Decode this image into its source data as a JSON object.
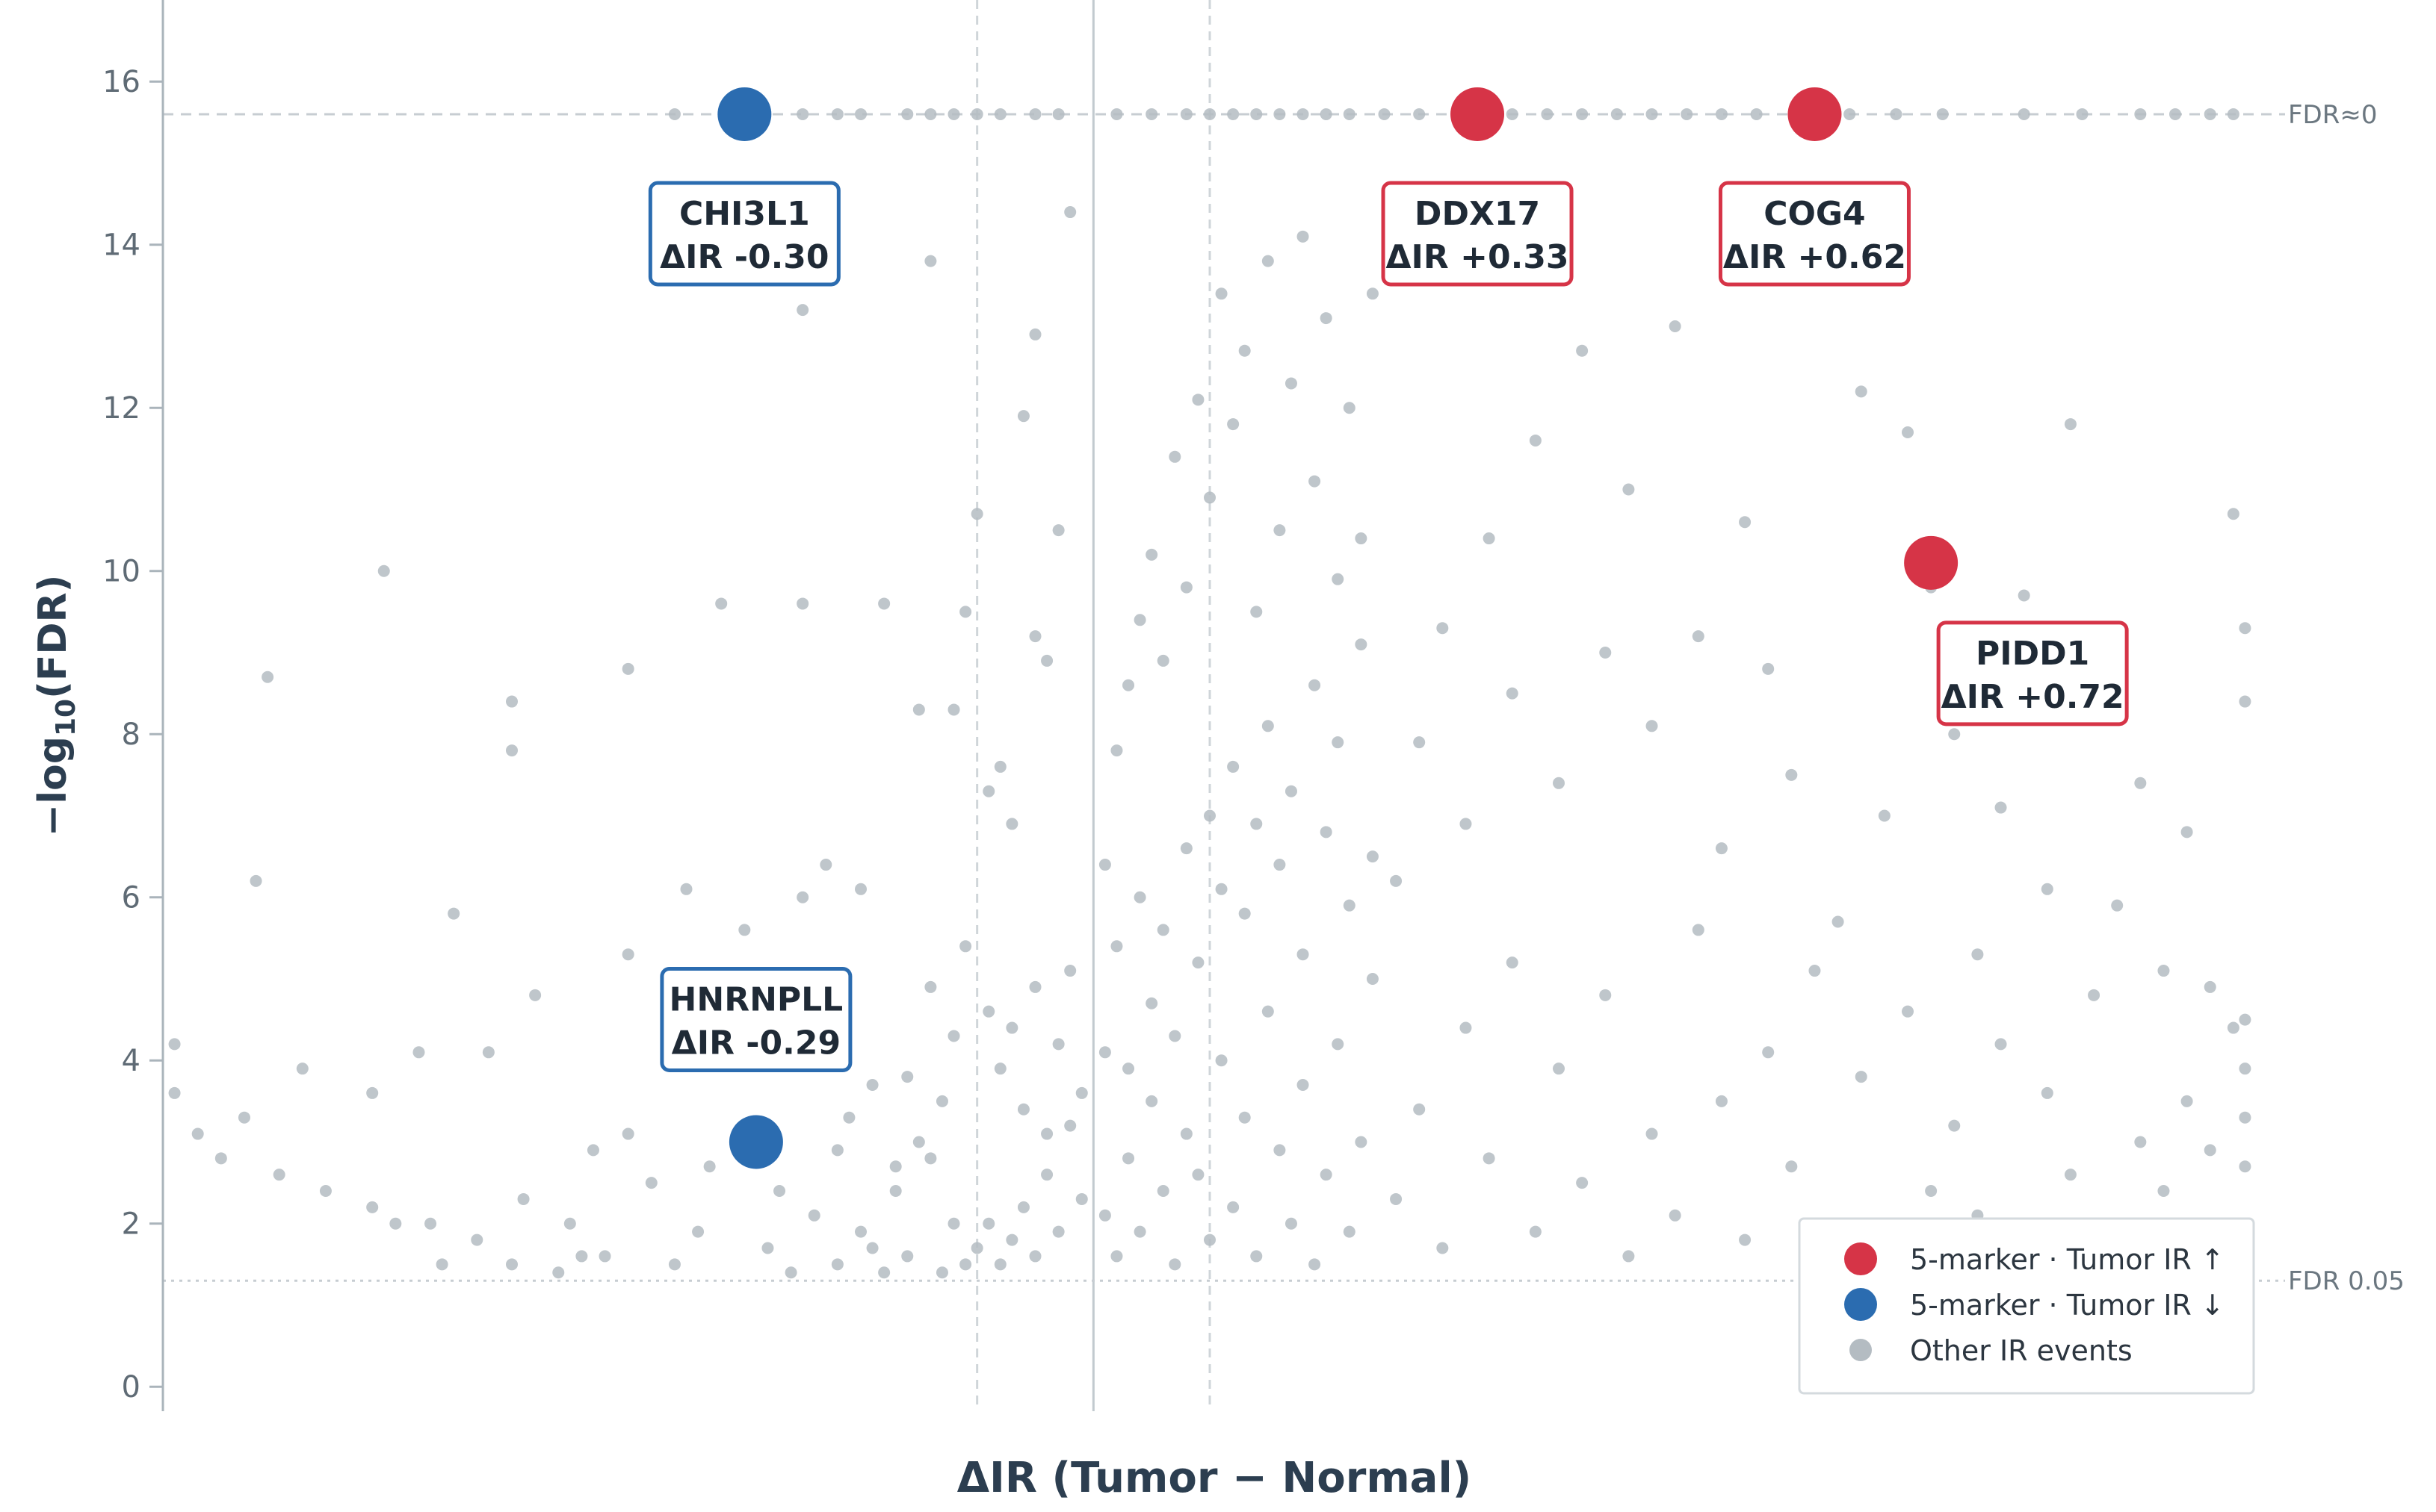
{
  "chart_data": {
    "type": "scatter",
    "title": "",
    "xlabel": "ΔIR  (Tumor − Normal)",
    "ylabel": "−log₁₀(FDR)",
    "ylabel_parts": {
      "pre": "−log",
      "sub": "10",
      "post": "(FDR)"
    },
    "xlim": [
      -0.8,
      1.0
    ],
    "ylim": [
      -0.3,
      17.0
    ],
    "yticks": [
      0,
      2,
      4,
      6,
      8,
      10,
      12,
      14,
      16
    ],
    "x_tick_labels_shown": false,
    "grid": false,
    "reference_lines": {
      "vertical_solid_x": [
        0.0
      ],
      "vertical_dashed_x": [
        -0.1,
        0.1
      ],
      "horizontal": [
        {
          "y": 15.6,
          "label": "FDR≈0",
          "style": "dashed"
        },
        {
          "y": 1.3,
          "label": "FDR 0.05",
          "style": "dotted"
        }
      ]
    },
    "colors": {
      "up": "#d63447",
      "down": "#2b6cb0",
      "other": "#b4bcc2"
    },
    "series": [
      {
        "name": "5-marker · Tumor IR ↑",
        "role": "up",
        "points": [
          {
            "x": 0.33,
            "y": 15.6,
            "label": "DDX17",
            "annotation": "ΔIR +0.33"
          },
          {
            "x": 0.62,
            "y": 15.6,
            "label": "COG4",
            "annotation": "ΔIR +0.62"
          },
          {
            "x": 0.72,
            "y": 10.1,
            "label": "PIDD1",
            "annotation": "ΔIR +0.72"
          }
        ]
      },
      {
        "name": "5-marker · Tumor IR ↓",
        "role": "down",
        "points": [
          {
            "x": -0.3,
            "y": 15.6,
            "label": "CHI3L1",
            "annotation": "ΔIR -0.30"
          },
          {
            "x": -0.29,
            "y": 3.0,
            "label": "HNRNPLL",
            "annotation": "ΔIR -0.29"
          }
        ]
      },
      {
        "name": "Other IR events",
        "role": "other",
        "points": [
          [
            -0.25,
            9.6
          ],
          [
            -0.32,
            9.6
          ],
          [
            -0.4,
            8.8
          ],
          [
            -0.18,
            9.6
          ],
          [
            -0.61,
            10.0
          ],
          [
            -0.71,
            8.7
          ],
          [
            -0.5,
            8.4
          ],
          [
            -0.5,
            7.8
          ],
          [
            -0.25,
            13.2
          ],
          [
            -0.23,
            14.4
          ],
          [
            -0.14,
            13.8
          ],
          [
            -0.1,
            10.7
          ],
          [
            -0.05,
            12.9
          ],
          [
            -0.06,
            11.9
          ],
          [
            -0.02,
            14.4
          ],
          [
            -0.03,
            10.5
          ],
          [
            -0.05,
            9.2
          ],
          [
            -0.04,
            8.9
          ],
          [
            -0.11,
            9.5
          ],
          [
            -0.12,
            8.3
          ],
          [
            -0.15,
            8.3
          ],
          [
            -0.08,
            7.6
          ],
          [
            -0.09,
            7.3
          ],
          [
            -0.07,
            6.9
          ],
          [
            -0.2,
            6.1
          ],
          [
            -0.23,
            6.4
          ],
          [
            -0.25,
            6.0
          ],
          [
            -0.3,
            5.6
          ],
          [
            -0.35,
            6.1
          ],
          [
            -0.4,
            5.3
          ],
          [
            -0.48,
            4.8
          ],
          [
            -0.52,
            4.1
          ],
          [
            -0.58,
            4.1
          ],
          [
            -0.62,
            3.6
          ],
          [
            -0.68,
            3.9
          ],
          [
            -0.73,
            3.3
          ],
          [
            -0.79,
            4.2
          ],
          [
            -0.79,
            3.6
          ],
          [
            -0.77,
            3.1
          ],
          [
            -0.75,
            2.8
          ],
          [
            -0.7,
            2.6
          ],
          [
            -0.66,
            2.4
          ],
          [
            -0.62,
            2.2
          ],
          [
            -0.57,
            2.0
          ],
          [
            -0.53,
            1.8
          ],
          [
            -0.49,
            2.3
          ],
          [
            -0.45,
            2.0
          ],
          [
            -0.42,
            1.6
          ],
          [
            -0.38,
            2.5
          ],
          [
            -0.34,
            1.9
          ],
          [
            -0.28,
            1.7
          ],
          [
            -0.24,
            2.1
          ],
          [
            -0.2,
            1.9
          ],
          [
            -0.17,
            2.4
          ],
          [
            -0.14,
            2.8
          ],
          [
            -0.12,
            2.0
          ],
          [
            -0.72,
            6.2
          ],
          [
            -0.55,
            5.8
          ],
          [
            -0.6,
            2.0
          ],
          [
            -0.56,
            1.5
          ],
          [
            -0.5,
            1.5
          ],
          [
            -0.46,
            1.4
          ],
          [
            -0.44,
            1.6
          ],
          [
            -0.36,
            1.5
          ],
          [
            -0.26,
            1.4
          ],
          [
            -0.22,
            1.5
          ],
          [
            -0.18,
            1.4
          ],
          [
            -0.16,
            1.6
          ],
          [
            -0.13,
            1.4
          ],
          [
            -0.11,
            1.5
          ],
          [
            -0.1,
            1.7
          ],
          [
            -0.09,
            2.0
          ],
          [
            -0.08,
            1.5
          ],
          [
            -0.07,
            1.8
          ],
          [
            -0.06,
            2.2
          ],
          [
            -0.05,
            1.6
          ],
          [
            -0.04,
            2.6
          ],
          [
            -0.03,
            1.9
          ],
          [
            -0.02,
            3.2
          ],
          [
            -0.01,
            2.3
          ],
          [
            -0.09,
            4.6
          ],
          [
            -0.08,
            3.9
          ],
          [
            -0.07,
            4.4
          ],
          [
            -0.06,
            3.4
          ],
          [
            -0.05,
            4.9
          ],
          [
            -0.04,
            3.1
          ],
          [
            -0.03,
            4.2
          ],
          [
            -0.02,
            5.1
          ],
          [
            -0.01,
            3.6
          ],
          [
            -0.11,
            5.4
          ],
          [
            -0.12,
            4.3
          ],
          [
            -0.13,
            3.5
          ],
          [
            -0.14,
            4.9
          ],
          [
            -0.15,
            3.0
          ],
          [
            -0.16,
            3.8
          ],
          [
            -0.17,
            2.7
          ],
          [
            -0.43,
            2.9
          ],
          [
            -0.4,
            3.1
          ],
          [
            -0.33,
            2.7
          ],
          [
            -0.27,
            2.4
          ],
          [
            -0.21,
            3.3
          ],
          [
            -0.19,
            1.7
          ],
          [
            -0.19,
            3.7
          ],
          [
            -0.22,
            2.9
          ],
          [
            0.01,
            2.1
          ],
          [
            0.02,
            1.6
          ],
          [
            0.03,
            2.8
          ],
          [
            0.04,
            1.9
          ],
          [
            0.05,
            3.5
          ],
          [
            0.06,
            2.4
          ],
          [
            0.07,
            1.5
          ],
          [
            0.08,
            3.1
          ],
          [
            0.09,
            2.6
          ],
          [
            0.1,
            1.8
          ],
          [
            0.11,
            4.0
          ],
          [
            0.12,
            2.2
          ],
          [
            0.13,
            3.3
          ],
          [
            0.14,
            1.6
          ],
          [
            0.15,
            4.6
          ],
          [
            0.16,
            2.9
          ],
          [
            0.17,
            2.0
          ],
          [
            0.18,
            3.7
          ],
          [
            0.19,
            1.5
          ],
          [
            0.2,
            2.6
          ],
          [
            0.21,
            4.2
          ],
          [
            0.22,
            1.9
          ],
          [
            0.23,
            3.0
          ],
          [
            0.24,
            5.0
          ],
          [
            0.01,
            4.1
          ],
          [
            0.02,
            5.4
          ],
          [
            0.03,
            3.9
          ],
          [
            0.04,
            6.0
          ],
          [
            0.05,
            4.7
          ],
          [
            0.06,
            5.6
          ],
          [
            0.07,
            4.3
          ],
          [
            0.08,
            6.6
          ],
          [
            0.09,
            5.2
          ],
          [
            0.1,
            7.0
          ],
          [
            0.11,
            6.1
          ],
          [
            0.12,
            7.6
          ],
          [
            0.13,
            5.8
          ],
          [
            0.14,
            6.9
          ],
          [
            0.15,
            8.1
          ],
          [
            0.16,
            6.4
          ],
          [
            0.17,
            7.3
          ],
          [
            0.18,
            5.3
          ],
          [
            0.19,
            8.6
          ],
          [
            0.2,
            6.8
          ],
          [
            0.21,
            7.9
          ],
          [
            0.22,
            5.9
          ],
          [
            0.23,
            9.1
          ],
          [
            0.24,
            6.5
          ],
          [
            0.01,
            6.4
          ],
          [
            0.02,
            7.8
          ],
          [
            0.03,
            8.6
          ],
          [
            0.04,
            9.4
          ],
          [
            0.05,
            10.2
          ],
          [
            0.06,
            8.9
          ],
          [
            0.07,
            11.4
          ],
          [
            0.08,
            9.8
          ],
          [
            0.09,
            12.1
          ],
          [
            0.1,
            10.9
          ],
          [
            0.11,
            13.4
          ],
          [
            0.12,
            11.8
          ],
          [
            0.13,
            12.7
          ],
          [
            0.14,
            9.5
          ],
          [
            0.15,
            13.8
          ],
          [
            0.16,
            10.5
          ],
          [
            0.17,
            12.3
          ],
          [
            0.18,
            14.1
          ],
          [
            0.19,
            11.1
          ],
          [
            0.2,
            13.1
          ],
          [
            0.21,
            9.9
          ],
          [
            0.22,
            12.0
          ],
          [
            0.23,
            10.4
          ],
          [
            0.24,
            13.4
          ],
          [
            0.26,
            2.3
          ],
          [
            0.28,
            3.4
          ],
          [
            0.3,
            1.7
          ],
          [
            0.32,
            4.4
          ],
          [
            0.34,
            2.8
          ],
          [
            0.36,
            5.2
          ],
          [
            0.38,
            1.9
          ],
          [
            0.4,
            3.9
          ],
          [
            0.42,
            2.5
          ],
          [
            0.44,
            4.8
          ],
          [
            0.46,
            1.6
          ],
          [
            0.48,
            3.1
          ],
          [
            0.5,
            2.1
          ],
          [
            0.52,
            5.6
          ],
          [
            0.54,
            3.5
          ],
          [
            0.56,
            1.8
          ],
          [
            0.58,
            4.1
          ],
          [
            0.6,
            2.7
          ],
          [
            0.62,
            5.1
          ],
          [
            0.64,
            2.0
          ],
          [
            0.66,
            3.8
          ],
          [
            0.68,
            1.7
          ],
          [
            0.7,
            4.6
          ],
          [
            0.72,
            2.4
          ],
          [
            0.26,
            6.2
          ],
          [
            0.28,
            7.9
          ],
          [
            0.3,
            9.3
          ],
          [
            0.32,
            6.9
          ],
          [
            0.34,
            10.4
          ],
          [
            0.36,
            8.5
          ],
          [
            0.38,
            11.6
          ],
          [
            0.4,
            7.4
          ],
          [
            0.42,
            12.7
          ],
          [
            0.44,
            9.0
          ],
          [
            0.46,
            11.0
          ],
          [
            0.48,
            8.1
          ],
          [
            0.5,
            13.0
          ],
          [
            0.52,
            9.2
          ],
          [
            0.54,
            6.6
          ],
          [
            0.56,
            10.6
          ],
          [
            0.58,
            8.8
          ],
          [
            0.6,
            7.5
          ],
          [
            0.62,
            14.0
          ],
          [
            0.64,
            5.7
          ],
          [
            0.66,
            12.2
          ],
          [
            0.68,
            7.0
          ],
          [
            0.7,
            11.7
          ],
          [
            0.72,
            9.8
          ],
          [
            0.74,
            3.2
          ],
          [
            0.76,
            2.1
          ],
          [
            0.78,
            4.2
          ],
          [
            0.8,
            1.6
          ],
          [
            0.82,
            3.6
          ],
          [
            0.84,
            2.6
          ],
          [
            0.86,
            4.8
          ],
          [
            0.88,
            1.9
          ],
          [
            0.9,
            3.0
          ],
          [
            0.92,
            2.4
          ],
          [
            0.94,
            3.5
          ],
          [
            0.96,
            2.9
          ],
          [
            0.98,
            4.4
          ],
          [
            0.99,
            3.3
          ],
          [
            0.99,
            3.9
          ],
          [
            0.99,
            2.7
          ],
          [
            0.74,
            8.0
          ],
          [
            0.76,
            5.3
          ],
          [
            0.78,
            7.1
          ],
          [
            0.8,
            9.7
          ],
          [
            0.82,
            6.1
          ],
          [
            0.84,
            11.8
          ],
          [
            0.86,
            8.3
          ],
          [
            0.88,
            5.9
          ],
          [
            0.9,
            7.4
          ],
          [
            0.92,
            5.1
          ],
          [
            0.94,
            6.8
          ],
          [
            0.96,
            4.9
          ],
          [
            0.98,
            10.7
          ],
          [
            0.99,
            9.3
          ],
          [
            0.99,
            8.4
          ],
          [
            0.99,
            4.5
          ],
          [
            -0.25,
            15.6
          ],
          [
            -0.22,
            15.6
          ],
          [
            -0.2,
            15.6
          ],
          [
            -0.14,
            15.6
          ],
          [
            -0.12,
            15.6
          ],
          [
            -0.1,
            15.6
          ],
          [
            -0.08,
            15.6
          ],
          [
            -0.05,
            15.6
          ],
          [
            -0.03,
            15.6
          ],
          [
            0.02,
            15.6
          ],
          [
            0.05,
            15.6
          ],
          [
            0.08,
            15.6
          ],
          [
            0.1,
            15.6
          ],
          [
            0.12,
            15.6
          ],
          [
            0.14,
            15.6
          ],
          [
            0.16,
            15.6
          ],
          [
            0.18,
            15.6
          ],
          [
            0.2,
            15.6
          ],
          [
            0.22,
            15.6
          ],
          [
            0.25,
            15.6
          ],
          [
            0.28,
            15.6
          ],
          [
            0.36,
            15.6
          ],
          [
            0.39,
            15.6
          ],
          [
            0.42,
            15.6
          ],
          [
            0.45,
            15.6
          ],
          [
            0.48,
            15.6
          ],
          [
            0.51,
            15.6
          ],
          [
            0.54,
            15.6
          ],
          [
            0.57,
            15.6
          ],
          [
            0.65,
            15.6
          ],
          [
            0.69,
            15.6
          ],
          [
            0.73,
            15.6
          ],
          [
            0.8,
            15.6
          ],
          [
            0.85,
            15.6
          ],
          [
            0.9,
            15.6
          ],
          [
            0.93,
            15.6
          ],
          [
            0.96,
            15.6
          ],
          [
            0.98,
            15.6
          ],
          [
            -0.36,
            15.6
          ],
          [
            -0.16,
            15.6
          ]
        ]
      }
    ],
    "legend": {
      "position": "bottom-right",
      "entries": [
        "5-marker · Tumor IR ↑",
        "5-marker · Tumor IR ↓",
        "Other IR events"
      ]
    }
  }
}
